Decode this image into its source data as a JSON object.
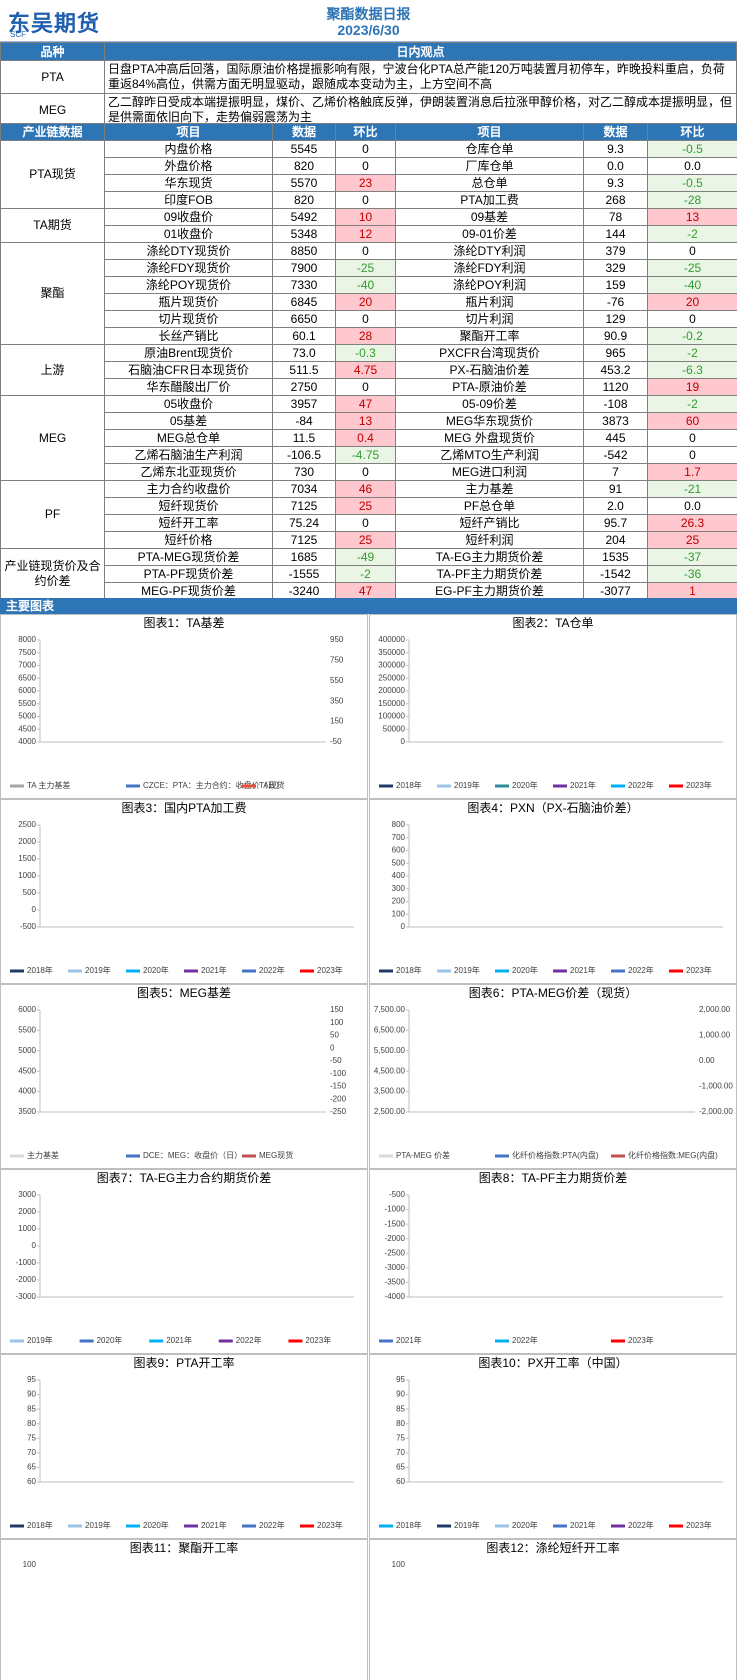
{
  "header": {
    "logo": "东吴期货",
    "logo_sub": "SCF",
    "title": "聚酯数据日报",
    "date": "2023/6/30"
  },
  "views": {
    "head": [
      "品种",
      "日内观点"
    ],
    "rows": [
      [
        "PTA",
        "日盘PTA冲高后回落，国际原油价格提振影响有限，宁波台化PTA总产能120万吨装置月初停车，昨晚投料重启，负荷重返84%高位，供需方面无明显驱动，跟随成本变动为主，上方空间不高"
      ],
      [
        "MEG",
        "乙二醇昨日受成本端提振明显，煤价、乙烯价格触底反弹，伊朗装置消息后拉涨甲醇价格，对乙二醇成本提振明显，但是供需面依旧向下，走势偏弱震荡为主"
      ]
    ]
  },
  "table": {
    "head": [
      "产业链数据",
      "项目",
      "数据",
      "环比",
      "项目",
      "数据",
      "环比"
    ],
    "groups": [
      {
        "name": "PTA现货",
        "rows": [
          [
            "内盘价格",
            "5545",
            "0",
            "仓库仓单",
            "9.3",
            "-0.5"
          ],
          [
            "外盘价格",
            "820",
            "0",
            "厂库仓单",
            "0.0",
            "0.0"
          ],
          [
            "华东现货",
            "5570",
            "23",
            "总仓单",
            "9.3",
            "-0.5"
          ],
          [
            "印度FOB",
            "820",
            "0",
            "PTA加工费",
            "268",
            "-28"
          ]
        ]
      },
      {
        "name": "TA期货",
        "rows": [
          [
            "09收盘价",
            "5492",
            "10",
            "09基差",
            "78",
            "13"
          ],
          [
            "01收盘价",
            "5348",
            "12",
            "09-01价差",
            "144",
            "-2"
          ]
        ]
      },
      {
        "name": "聚酯",
        "rows": [
          [
            "涤纶DTY现货价",
            "8850",
            "0",
            "涤纶DTY利润",
            "379",
            "0"
          ],
          [
            "涤纶FDY现货价",
            "7900",
            "-25",
            "涤纶FDY利润",
            "329",
            "-25"
          ],
          [
            "涤纶POY现货价",
            "7330",
            "-40",
            "涤纶POY利润",
            "159",
            "-40"
          ],
          [
            "瓶片现货价",
            "6845",
            "20",
            "瓶片利润",
            "-76",
            "20"
          ],
          [
            "切片现货价",
            "6650",
            "0",
            "切片利润",
            "129",
            "0"
          ],
          [
            "长丝产销比",
            "60.1",
            "28",
            "聚酯开工率",
            "90.9",
            "-0.2"
          ]
        ]
      },
      {
        "name": "上游",
        "rows": [
          [
            "原油Brent现货价",
            "73.0",
            "-0.3",
            "PXCFR台湾现货价",
            "965",
            "-2"
          ],
          [
            "石脑油CFR日本现货价",
            "511.5",
            "4.75",
            "PX-石脑油价差",
            "453.2",
            "-6.3"
          ],
          [
            "华东醋酸出厂价",
            "2750",
            "0",
            "PTA-原油价差",
            "1120",
            "19"
          ]
        ]
      },
      {
        "name": "MEG",
        "rows": [
          [
            "05收盘价",
            "3957",
            "47",
            "05-09价差",
            "-108",
            "-2"
          ],
          [
            "05基差",
            "-84",
            "13",
            "MEG华东现货价",
            "3873",
            "60"
          ],
          [
            "MEG总仓单",
            "11.5",
            "0.4",
            "MEG 外盘现货价",
            "445",
            "0"
          ],
          [
            "乙烯石脑油生产利润",
            "-106.5",
            "-4.75",
            "乙烯MTO生产利润",
            "-542",
            "0"
          ],
          [
            "乙烯东北亚现货价",
            "730",
            "0",
            "MEG进口利润",
            "7",
            "1.7"
          ]
        ]
      },
      {
        "name": "PF",
        "rows": [
          [
            "主力合约收盘价",
            "7034",
            "46",
            "主力基差",
            "91",
            "-21"
          ],
          [
            "短纤现货价",
            "7125",
            "25",
            "PF总仓单",
            "2.0",
            "0.0"
          ],
          [
            "短纤开工率",
            "75.24",
            "0",
            "短纤产销比",
            "95.7",
            "26.3"
          ],
          [
            "短纤价格",
            "7125",
            "25",
            "短纤利润",
            "204",
            "25"
          ]
        ]
      },
      {
        "name": "产业链现货价及合约价差",
        "rows": [
          [
            "PTA-MEG现货价差",
            "1685",
            "-49",
            "TA-EG主力期货价差",
            "1535",
            "-37"
          ],
          [
            "PTA-PF现货价差",
            "-1555",
            "-2",
            "TA-PF主力期货价差",
            "-1542",
            "-36"
          ],
          [
            "MEG-PF现货价差",
            "-3240",
            "47",
            "EG-PF主力期货价差",
            "-3077",
            "1"
          ]
        ]
      }
    ]
  },
  "section": "主要图表",
  "charts": [
    {
      "title": "图表1：TA基差",
      "yticks": [
        4000,
        4500,
        5000,
        5500,
        6000,
        6500,
        7000,
        7500,
        8000
      ],
      "y2ticks": [
        -50,
        150,
        350,
        550,
        750,
        950
      ],
      "legend": [
        {
          "name": "TA 主力基差",
          "color": "#a6a6a6"
        },
        {
          "name": "CZCE：PTA：主力合约：收盘价（日）",
          "color": "#4472c4"
        },
        {
          "name": "TA现货",
          "color": "#e74c3c"
        }
      ]
    },
    {
      "title": "图表2：TA仓单",
      "yticks": [
        0,
        50000,
        100000,
        150000,
        200000,
        250000,
        300000,
        350000,
        400000
      ],
      "legend": [
        {
          "name": "2018年",
          "color": "#1f3864"
        },
        {
          "name": "2019年",
          "color": "#9dc3e6"
        },
        {
          "name": "2020年",
          "color": "#2e8b9a"
        },
        {
          "name": "2021年",
          "color": "#7030a0"
        },
        {
          "name": "2022年",
          "color": "#00b0f0"
        },
        {
          "name": "2023年",
          "color": "#ff0000"
        }
      ]
    },
    {
      "title": "图表3：国内PTA加工费",
      "yticks": [
        -500,
        0,
        500,
        1000,
        1500,
        2000,
        2500
      ],
      "legend": [
        {
          "name": "2018年",
          "color": "#1f3864"
        },
        {
          "name": "2019年",
          "color": "#9dc3e6"
        },
        {
          "name": "2020年",
          "color": "#00b0f0"
        },
        {
          "name": "2021年",
          "color": "#7030a0"
        },
        {
          "name": "2022年",
          "color": "#4472c4"
        },
        {
          "name": "2023年",
          "color": "#ff0000"
        }
      ]
    },
    {
      "title": "图表4：PXN（PX-石脑油价差）",
      "yticks": [
        0,
        100,
        200,
        300,
        400,
        500,
        600,
        700,
        800
      ],
      "legend": [
        {
          "name": "2018年",
          "color": "#1f3864"
        },
        {
          "name": "2019年",
          "color": "#9dc3e6"
        },
        {
          "name": "2020年",
          "color": "#00b0f0"
        },
        {
          "name": "2021年",
          "color": "#7030a0"
        },
        {
          "name": "2022年",
          "color": "#4472c4"
        },
        {
          "name": "2023年",
          "color": "#ff0000"
        }
      ]
    },
    {
      "title": "图表5：MEG基差",
      "yticks": [
        3500,
        4000,
        4500,
        5000,
        5500,
        6000
      ],
      "y2ticks": [
        -250,
        -200,
        -150,
        -100,
        -50,
        0,
        50,
        100,
        150
      ],
      "legend": [
        {
          "name": "主力基差",
          "color": "#d9d9d9"
        },
        {
          "name": "DCE：MEG：收盘价（日）",
          "color": "#4472c4"
        },
        {
          "name": "MEG现货",
          "color": "#c0504d"
        }
      ]
    },
    {
      "title": "图表6：PTA-MEG价差（现货）",
      "yticks": [
        {
          "value": 2500,
          "label": "2,500.00"
        },
        {
          "value": 3500,
          "label": "3,500.00"
        },
        {
          "value": 4500,
          "label": "4,500.00"
        },
        {
          "value": 5500,
          "label": "5,500.00"
        },
        {
          "value": 6500,
          "label": "6,500.00"
        },
        {
          "value": 7500,
          "label": "7,500.00"
        }
      ],
      "y2ticks": [
        {
          "value": -2000,
          "label": "-2,000.00"
        },
        {
          "value": -1000,
          "label": "-1,000.00"
        },
        {
          "value": 0,
          "label": "0.00"
        },
        {
          "value": 1000,
          "label": "1,000.00"
        },
        {
          "value": 2000,
          "label": "2,000.00"
        }
      ],
      "legend": [
        {
          "name": "PTA-MEG 价差",
          "color": "#d9d9d9"
        },
        {
          "name": "化纤价格指数:PTA(内盘)",
          "color": "#4472c4"
        },
        {
          "name": "化纤价格指数:MEG(内盘)",
          "color": "#c0504d"
        }
      ]
    },
    {
      "title": "图表7：TA-EG主力合约期货价差",
      "yticks": [
        -3000,
        -2000,
        -1000,
        0,
        1000,
        2000,
        3000
      ],
      "legend": [
        {
          "name": "2019年",
          "color": "#9dc3e6"
        },
        {
          "name": "2020年",
          "color": "#4472c4"
        },
        {
          "name": "2021年",
          "color": "#00b0f0"
        },
        {
          "name": "2022年",
          "color": "#7030a0"
        },
        {
          "name": "2023年",
          "color": "#ff0000"
        }
      ]
    },
    {
      "title": "图表8：TA-PF主力期货价差",
      "yticks": [
        -4000,
        -3500,
        -3000,
        -2500,
        -2000,
        -1500,
        -1000,
        -500
      ],
      "legend": [
        {
          "name": "2021年",
          "color": "#4472c4"
        },
        {
          "name": "2022年",
          "color": "#00b0f0"
        },
        {
          "name": "2023年",
          "color": "#ff0000"
        }
      ]
    },
    {
      "title": "图表9：PTA开工率",
      "yticks": [
        60,
        65,
        70,
        75,
        80,
        85,
        90,
        95
      ],
      "legend": [
        {
          "name": "2018年",
          "color": "#1f3864"
        },
        {
          "name": "2019年",
          "color": "#9dc3e6"
        },
        {
          "name": "2020年",
          "color": "#00b0f0"
        },
        {
          "name": "2021年",
          "color": "#7030a0"
        },
        {
          "name": "2022年",
          "color": "#4472c4"
        },
        {
          "name": "2023年",
          "color": "#ff0000"
        }
      ]
    },
    {
      "title": "图表10：PX开工率（中国）",
      "yticks": [
        60,
        65,
        70,
        75,
        80,
        85,
        90,
        95
      ],
      "legend": [
        {
          "name": "2018年",
          "color": "#00b0f0"
        },
        {
          "name": "2019年",
          "color": "#1f3864"
        },
        {
          "name": "2020年",
          "color": "#9dc3e6"
        },
        {
          "name": "2021年",
          "color": "#4472c4"
        },
        {
          "name": "2022年",
          "color": "#7030a0"
        },
        {
          "name": "2023年",
          "color": "#ff0000"
        }
      ]
    },
    {
      "title": "图表11：聚酯开工率",
      "yticks": [
        100
      ]
    },
    {
      "title": "图表12：涤纶短纤开工率",
      "yticks": [
        100
      ]
    }
  ]
}
